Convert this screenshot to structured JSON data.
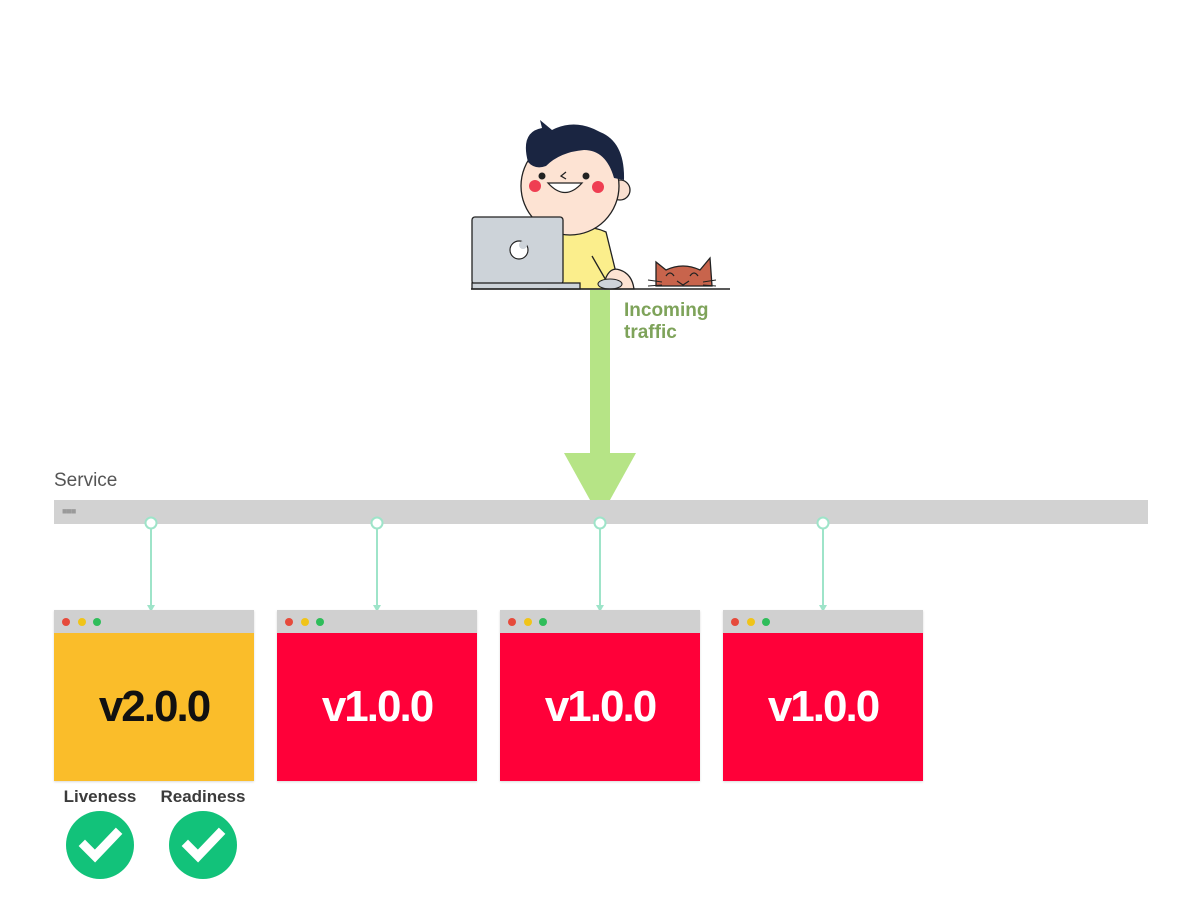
{
  "diagram": {
    "traffic_label": "Incoming\ntraffic",
    "service_label": "Service"
  },
  "pods": [
    {
      "version": "v2.0.0",
      "status_color": "#fabd2a",
      "text_color": "#111111"
    },
    {
      "version": "v1.0.0",
      "status_color": "#ff0039",
      "text_color": "#ffffff"
    },
    {
      "version": "v1.0.0",
      "status_color": "#ff0039",
      "text_color": "#ffffff"
    },
    {
      "version": "v1.0.0",
      "status_color": "#ff0039",
      "text_color": "#ffffff"
    }
  ],
  "probes": [
    {
      "label": "Liveness",
      "state": "passed",
      "icon": "check-icon"
    },
    {
      "label": "Readiness",
      "state": "passed",
      "icon": "check-icon"
    }
  ],
  "colors": {
    "traffic_arrow": "#b6e486",
    "traffic_text": "#7ea35a",
    "connector": "#9ee4c9",
    "service_bar": "#d2d2d2",
    "check": "#12c27a"
  }
}
